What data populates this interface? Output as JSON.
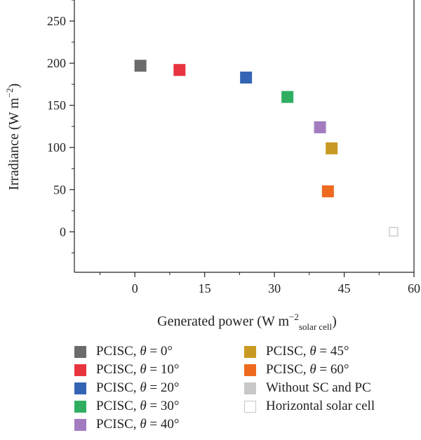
{
  "chart_data": {
    "type": "scatter",
    "xlabel": "Generated power (W m",
    "xlabel_sup": "−2",
    "xlabel_sub": "solar cell",
    "xlabel_close": ")",
    "ylabel": "Irradiance (W m",
    "ylabel_sup": "−2",
    "ylabel_close": ")",
    "xlim": [
      -13,
      60
    ],
    "ylim": [
      -48,
      275
    ],
    "xticks": [
      0,
      15,
      30,
      45,
      60
    ],
    "yticks": [
      0,
      50,
      100,
      150,
      200,
      250
    ],
    "grid": false,
    "legend_position": "bottom",
    "series": [
      {
        "name": "PCISC, θ = 0°",
        "prefix": "PCISC, ",
        "theta": "θ",
        "suffix": " = 0°",
        "color": "#6b6b6b",
        "x": 1.2,
        "y": 197,
        "hollow": false
      },
      {
        "name": "PCISC, θ = 10°",
        "prefix": "PCISC, ",
        "theta": "θ",
        "suffix": " = 10°",
        "color": "#e8343f",
        "x": 9.6,
        "y": 192,
        "hollow": false
      },
      {
        "name": "PCISC, θ = 20°",
        "prefix": "PCISC, ",
        "theta": "θ",
        "suffix": " = 20°",
        "color": "#3465b5",
        "x": 23.9,
        "y": 183,
        "hollow": false
      },
      {
        "name": "PCISC, θ = 30°",
        "prefix": "PCISC, ",
        "theta": "θ",
        "suffix": " = 30°",
        "color": "#2fae62",
        "x": 32.8,
        "y": 160,
        "hollow": false
      },
      {
        "name": "PCISC, θ = 40°",
        "prefix": "PCISC, ",
        "theta": "θ",
        "suffix": " = 40°",
        "color": "#a37cc0",
        "x": 39.8,
        "y": 124,
        "hollow": false
      },
      {
        "name": "PCISC, θ = 45°",
        "prefix": "PCISC, ",
        "theta": "θ",
        "suffix": " = 45°",
        "color": "#c99a22",
        "x": 42.3,
        "y": 99,
        "hollow": false
      },
      {
        "name": "PCISC, θ = 60°",
        "prefix": "PCISC, ",
        "theta": "θ",
        "suffix": " = 60°",
        "color": "#ee6a1f",
        "x": 41.5,
        "y": 48,
        "hollow": false
      },
      {
        "name": "Without SC and PC",
        "prefix": "Without SC and PC",
        "theta": "",
        "suffix": "",
        "color": "#c8c8c8",
        "x": null,
        "y": null,
        "hollow": false
      },
      {
        "name": "Horizontal solar cell",
        "prefix": "Horizontal solar cell",
        "theta": "",
        "suffix": "",
        "color": "#c8c8c8",
        "x": 55.6,
        "y": 0,
        "hollow": true
      }
    ]
  }
}
